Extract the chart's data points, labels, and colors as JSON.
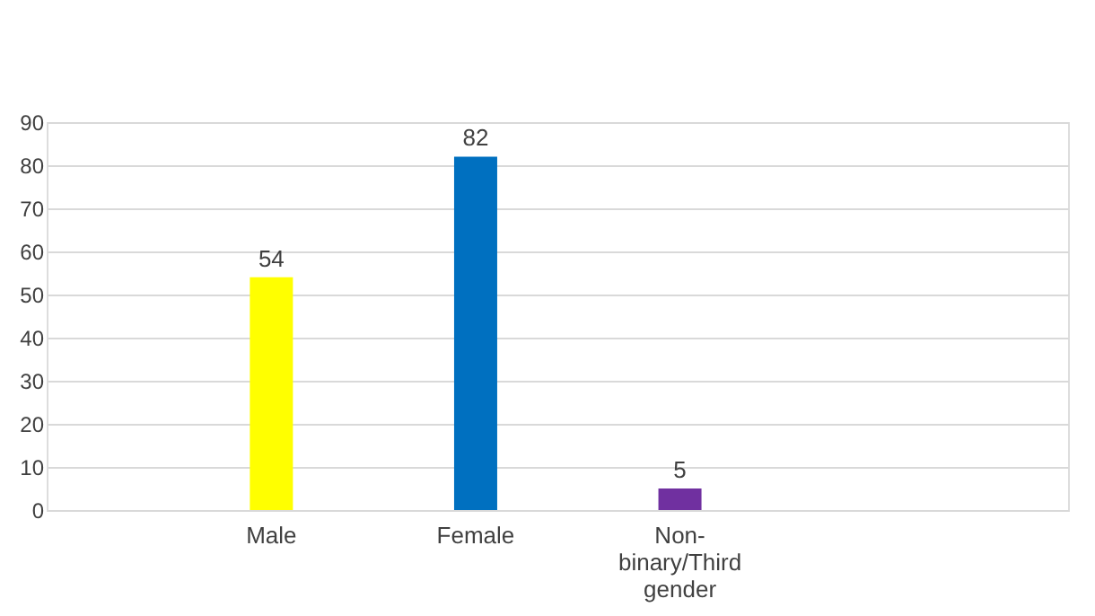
{
  "chart_data": {
    "type": "bar",
    "categories": [
      "Male",
      "Female",
      "Non-binary/Third gender"
    ],
    "values": [
      54,
      82,
      5
    ],
    "colors": [
      "#ffff00",
      "#0070c0",
      "#7030a0"
    ],
    "ylim": [
      0,
      90
    ],
    "yticks": [
      0,
      10,
      20,
      30,
      40,
      50,
      60,
      70,
      80,
      90
    ],
    "grid": "y",
    "data_labels": true
  }
}
